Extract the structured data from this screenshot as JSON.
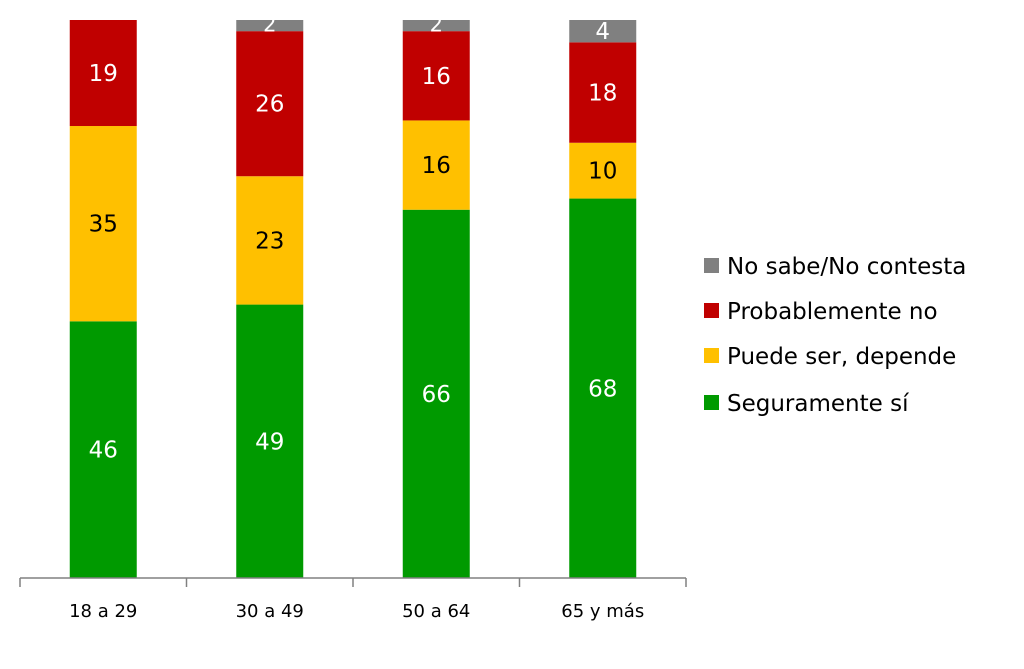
{
  "chart_data": {
    "type": "bar",
    "stacked": true,
    "categories": [
      "18 a 29",
      "30 a 49",
      "50 a 64",
      "65 y más"
    ],
    "series": [
      {
        "name": "Seguramente sí",
        "color": "#009A00",
        "values": [
          46,
          49,
          66,
          68
        ]
      },
      {
        "name": "Puede ser, depende",
        "color": "#FFC000",
        "values": [
          35,
          23,
          16,
          10
        ]
      },
      {
        "name": "Probablemente no",
        "color": "#C00000",
        "values": [
          19,
          26,
          16,
          18
        ]
      },
      {
        "name": "No sabe/No contesta",
        "color": "#808080",
        "values": [
          0,
          2,
          2,
          4
        ]
      }
    ],
    "label_colors": {
      "Seguramente sí": "#FFFFFF",
      "Puede ser, depende": "#000000",
      "Probablemente no": "#FFFFFF",
      "No sabe/No contesta": "#FFFFFF"
    },
    "ylim": [
      0,
      100
    ],
    "title": "",
    "xlabel": "",
    "ylabel": "",
    "grid": false,
    "legend_position": "right",
    "legend_order": [
      "No sabe/No contesta",
      "Probablemente no",
      "Puede ser, depende",
      "Seguramente sí"
    ]
  }
}
